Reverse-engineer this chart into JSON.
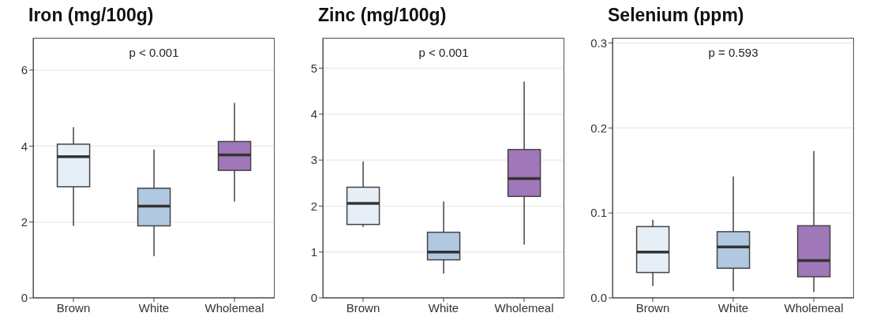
{
  "chart_data": [
    {
      "type": "box",
      "title": "Iron (mg/100g)",
      "categories": [
        "Brown",
        "White",
        "Wholemeal"
      ],
      "colors": [
        "#e6eef6",
        "#b0c8e0",
        "#a077b8"
      ],
      "boxes": [
        {
          "low": 1.9,
          "q1": 2.93,
          "median": 3.72,
          "q3": 4.05,
          "high": 4.5
        },
        {
          "low": 1.1,
          "q1": 1.9,
          "median": 2.42,
          "q3": 2.89,
          "high": 3.91
        },
        {
          "low": 2.54,
          "q1": 3.36,
          "median": 3.77,
          "q3": 4.12,
          "high": 5.14
        }
      ],
      "ylim": [
        0,
        6.85
      ],
      "yticks": [
        0,
        2,
        4,
        6
      ],
      "grid": "y",
      "annotations": [
        "p < 0.001"
      ]
    },
    {
      "type": "box",
      "title": "Zinc (mg/100g)",
      "categories": [
        "Brown",
        "White",
        "Wholemeal"
      ],
      "colors": [
        "#e6eef6",
        "#b0c8e0",
        "#a077b8"
      ],
      "boxes": [
        {
          "low": 1.55,
          "q1": 1.6,
          "median": 2.06,
          "q3": 2.41,
          "high": 2.97
        },
        {
          "low": 0.53,
          "q1": 0.83,
          "median": 1.0,
          "q3": 1.43,
          "high": 2.1
        },
        {
          "low": 1.16,
          "q1": 2.21,
          "median": 2.6,
          "q3": 3.23,
          "high": 4.71
        }
      ],
      "ylim": [
        0,
        5.66
      ],
      "yticks": [
        0,
        1,
        2,
        3,
        4,
        5
      ],
      "grid": "y",
      "annotations": [
        "p < 0.001"
      ]
    },
    {
      "type": "box",
      "title": "Selenium (ppm)",
      "categories": [
        "Brown",
        "White",
        "Wholemeal"
      ],
      "colors": [
        "#e6eef6",
        "#b0c8e0",
        "#a077b8"
      ],
      "boxes": [
        {
          "low": 0.014,
          "q1": 0.03,
          "median": 0.054,
          "q3": 0.084,
          "high": 0.092
        },
        {
          "low": 0.008,
          "q1": 0.035,
          "median": 0.06,
          "q3": 0.078,
          "high": 0.143
        },
        {
          "low": 0.007,
          "q1": 0.025,
          "median": 0.044,
          "q3": 0.085,
          "high": 0.173
        }
      ],
      "ylim": [
        0,
        0.306
      ],
      "yticks": [
        {
          "value": 0,
          "label": "0.0"
        },
        0.1,
        0.2,
        0.3
      ],
      "grid": "y",
      "annotations": [
        "p = 0.593"
      ]
    }
  ]
}
